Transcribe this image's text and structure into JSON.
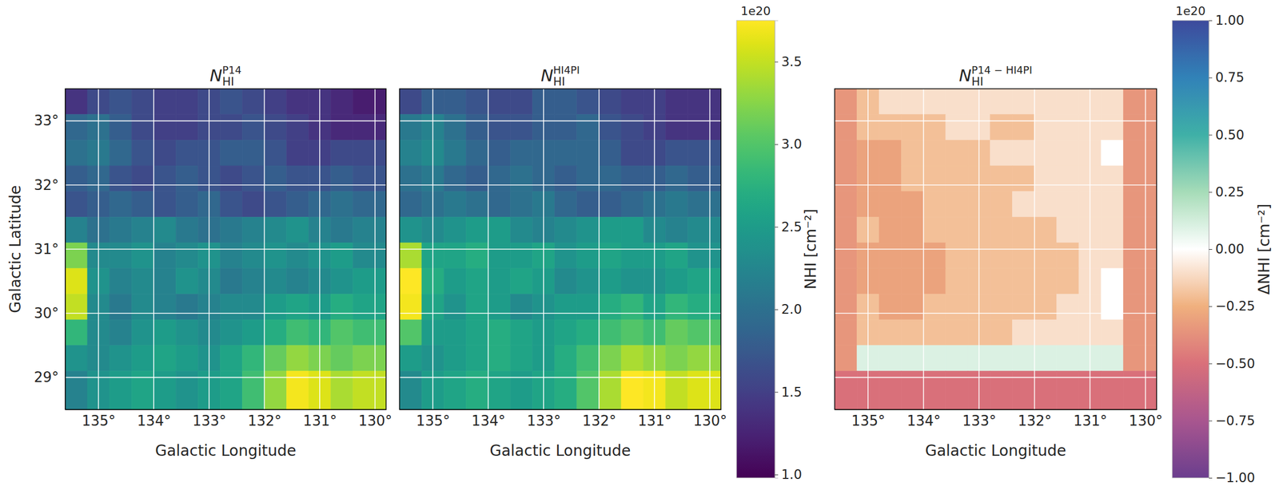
{
  "chart_data": [
    {
      "type": "heatmap",
      "title": {
        "base": "N",
        "sub": "HI",
        "sup": "P14"
      },
      "xlabel": "Galactic Longitude",
      "ylabel": "Galactic Latitude",
      "xlim": [
        135.6,
        129.8
      ],
      "ylim": [
        28.5,
        33.5
      ],
      "xticks": [
        {
          "value": 135,
          "label": "135°"
        },
        {
          "value": 134,
          "label": "134°"
        },
        {
          "value": 133,
          "label": "133°"
        },
        {
          "value": 132,
          "label": "132°"
        },
        {
          "value": 131,
          "label": "131°"
        },
        {
          "value": 130,
          "label": "130°"
        }
      ],
      "yticks": [
        {
          "value": 29,
          "label": "29°"
        },
        {
          "value": 30,
          "label": "30°"
        },
        {
          "value": 31,
          "label": "31°"
        },
        {
          "value": 32,
          "label": "32°"
        },
        {
          "value": 33,
          "label": "33°"
        }
      ],
      "grid": true,
      "x_edges": [
        135.6,
        135.2,
        134.8,
        134.4,
        134.0,
        133.6,
        133.2,
        132.8,
        132.4,
        132.0,
        131.6,
        131.2,
        130.8,
        130.4,
        129.8
      ],
      "y_edges": [
        33.5,
        33.1,
        32.7,
        32.3,
        31.9,
        31.5,
        31.1,
        30.7,
        30.3,
        29.9,
        29.5,
        29.1,
        28.5
      ],
      "cells": [
        [
          1.4,
          1.6,
          1.7,
          1.6,
          1.5,
          1.5,
          1.6,
          1.7,
          1.6,
          1.5,
          1.4,
          1.4,
          1.3,
          1.2
        ],
        [
          1.9,
          2.0,
          1.8,
          1.6,
          1.5,
          1.5,
          1.6,
          1.6,
          1.7,
          1.6,
          1.5,
          1.4,
          1.3,
          1.3
        ],
        [
          2.0,
          2.1,
          1.9,
          1.7,
          1.6,
          1.7,
          1.7,
          1.8,
          1.8,
          1.7,
          1.5,
          1.5,
          1.6,
          1.6
        ],
        [
          1.8,
          1.9,
          1.7,
          1.6,
          1.7,
          1.8,
          1.7,
          1.6,
          1.7,
          1.8,
          1.7,
          1.7,
          1.8,
          1.7
        ],
        [
          1.7,
          1.8,
          1.9,
          1.8,
          1.7,
          1.8,
          1.9,
          1.7,
          1.6,
          1.7,
          1.8,
          1.9,
          2.0,
          1.9
        ],
        [
          2.2,
          2.0,
          2.1,
          2.2,
          2.3,
          2.1,
          2.0,
          2.1,
          2.2,
          2.3,
          2.4,
          2.2,
          2.1,
          2.2
        ],
        [
          3.2,
          2.3,
          2.3,
          2.4,
          2.2,
          2.3,
          2.4,
          2.2,
          2.3,
          2.4,
          2.3,
          2.4,
          2.5,
          2.3
        ],
        [
          3.6,
          2.4,
          2.2,
          2.3,
          2.2,
          2.4,
          2.3,
          2.1,
          2.2,
          2.3,
          2.2,
          2.3,
          2.4,
          2.5
        ],
        [
          3.5,
          2.3,
          2.1,
          2.3,
          2.2,
          2.1,
          2.2,
          2.3,
          2.3,
          2.5,
          2.6,
          2.5,
          2.7,
          2.6
        ],
        [
          2.8,
          2.3,
          2.2,
          2.4,
          2.5,
          2.4,
          2.3,
          2.4,
          2.5,
          2.7,
          2.9,
          2.8,
          3.0,
          2.9
        ],
        [
          2.4,
          2.3,
          2.4,
          2.5,
          2.6,
          2.5,
          2.4,
          2.6,
          2.8,
          3.1,
          3.3,
          3.2,
          3.1,
          3.2
        ],
        [
          2.2,
          2.4,
          2.5,
          2.6,
          2.5,
          2.4,
          2.5,
          2.6,
          2.9,
          3.3,
          3.7,
          3.6,
          3.4,
          3.5
        ]
      ]
    },
    {
      "type": "heatmap",
      "title": {
        "base": "N",
        "sub": "HI",
        "sup": "HI4PI"
      },
      "xlabel": "Galactic Longitude",
      "xlim": [
        135.6,
        129.8
      ],
      "ylim": [
        28.5,
        33.5
      ],
      "xticks": [
        {
          "value": 135,
          "label": "135°"
        },
        {
          "value": 134,
          "label": "134°"
        },
        {
          "value": 133,
          "label": "133°"
        },
        {
          "value": 132,
          "label": "132°"
        },
        {
          "value": 131,
          "label": "131°"
        },
        {
          "value": 130,
          "label": "130°"
        }
      ],
      "yticks": [
        29,
        30,
        31,
        32,
        33
      ],
      "grid": true,
      "tick_labels": "x",
      "x_edges": [
        135.6,
        135.2,
        134.8,
        134.4,
        134.0,
        133.6,
        133.2,
        132.8,
        132.4,
        132.0,
        131.6,
        131.2,
        130.8,
        130.4,
        129.8
      ],
      "y_edges": [
        33.5,
        33.1,
        32.7,
        32.3,
        31.9,
        31.5,
        31.1,
        30.7,
        30.3,
        29.9,
        29.5,
        29.1,
        28.5
      ],
      "cells": [
        [
          1.6,
          1.8,
          1.8,
          1.7,
          1.6,
          1.6,
          1.8,
          1.8,
          1.7,
          1.6,
          1.5,
          1.5,
          1.4,
          1.4
        ],
        [
          2.1,
          2.2,
          2.0,
          1.8,
          1.7,
          1.7,
          1.8,
          1.8,
          1.9,
          1.7,
          1.6,
          1.5,
          1.4,
          1.4
        ],
        [
          2.2,
          2.3,
          2.1,
          1.9,
          1.8,
          1.9,
          1.9,
          1.9,
          1.9,
          1.8,
          1.6,
          1.6,
          1.7,
          1.7
        ],
        [
          2.0,
          2.1,
          1.9,
          1.8,
          1.9,
          2.0,
          1.9,
          1.8,
          1.9,
          1.9,
          1.8,
          1.8,
          1.9,
          1.8
        ],
        [
          1.9,
          2.0,
          2.1,
          2.0,
          1.9,
          2.0,
          2.1,
          1.9,
          1.8,
          1.8,
          1.9,
          2.0,
          2.1,
          2.0
        ],
        [
          2.4,
          2.3,
          2.4,
          2.5,
          2.5,
          2.3,
          2.2,
          2.3,
          2.4,
          2.5,
          2.5,
          2.3,
          2.2,
          2.3
        ],
        [
          3.4,
          2.6,
          2.6,
          2.7,
          2.5,
          2.5,
          2.6,
          2.4,
          2.5,
          2.6,
          2.5,
          2.5,
          2.6,
          2.4
        ],
        [
          3.8,
          2.7,
          2.5,
          2.6,
          2.5,
          2.6,
          2.5,
          2.3,
          2.4,
          2.5,
          2.4,
          2.4,
          2.5,
          2.6
        ],
        [
          3.7,
          2.6,
          2.4,
          2.6,
          2.5,
          2.3,
          2.4,
          2.5,
          2.5,
          2.7,
          2.8,
          2.6,
          2.8,
          2.7
        ],
        [
          3.0,
          2.5,
          2.5,
          2.6,
          2.7,
          2.6,
          2.5,
          2.6,
          2.7,
          2.9,
          3.0,
          2.9,
          3.1,
          3.0
        ],
        [
          2.5,
          2.4,
          2.5,
          2.6,
          2.7,
          2.6,
          2.5,
          2.7,
          2.9,
          3.2,
          3.4,
          3.3,
          3.2,
          3.3
        ],
        [
          2.3,
          2.5,
          2.6,
          2.7,
          2.6,
          2.5,
          2.6,
          2.7,
          3.0,
          3.4,
          3.8,
          3.7,
          3.5,
          3.6
        ]
      ],
      "colorbar": {
        "label": "NHI [cm⁻²]",
        "offset_text": "1e20",
        "range": [
          0.98,
          3.75
        ],
        "ticks": [
          {
            "value": 1,
            "label": "1.0"
          },
          1.5,
          {
            "value": 2,
            "label": "2.0"
          },
          2.5,
          {
            "value": 3,
            "label": "3.0"
          },
          3.5
        ]
      }
    },
    {
      "type": "heatmap",
      "title": {
        "base": "N",
        "sub": "HI",
        "sup": "P14 − HI4PI"
      },
      "xlabel": "Galactic Longitude",
      "xlim": [
        135.6,
        129.8
      ],
      "ylim": [
        28.5,
        33.5
      ],
      "xticks": [
        {
          "value": 135,
          "label": "135°"
        },
        {
          "value": 134,
          "label": "134°"
        },
        {
          "value": 133,
          "label": "133°"
        },
        {
          "value": 132,
          "label": "132°"
        },
        {
          "value": 131,
          "label": "131°"
        },
        {
          "value": 130,
          "label": "130°"
        }
      ],
      "yticks": [
        29,
        30,
        31,
        32,
        33
      ],
      "grid": true,
      "tick_labels": "x",
      "x_edges": [
        135.6,
        135.2,
        134.8,
        134.4,
        134.0,
        133.6,
        133.2,
        132.8,
        132.4,
        132.0,
        131.6,
        131.2,
        130.8,
        130.4,
        129.8
      ],
      "y_edges": [
        33.5,
        33.1,
        32.7,
        32.3,
        31.9,
        31.5,
        31.1,
        30.7,
        30.3,
        29.9,
        29.5,
        29.1,
        28.5
      ],
      "cells": [
        [
          -0.35,
          -0.2,
          -0.1,
          -0.1,
          -0.1,
          -0.1,
          -0.1,
          -0.1,
          -0.1,
          -0.1,
          -0.1,
          -0.1,
          -0.1,
          -0.35
        ],
        [
          -0.35,
          -0.2,
          -0.2,
          -0.2,
          -0.2,
          -0.1,
          -0.1,
          -0.2,
          -0.2,
          -0.1,
          -0.1,
          -0.1,
          -0.1,
          -0.35
        ],
        [
          -0.35,
          -0.3,
          -0.3,
          -0.2,
          -0.2,
          -0.2,
          -0.2,
          -0.1,
          -0.1,
          -0.1,
          -0.1,
          -0.1,
          0,
          -0.35
        ],
        [
          -0.35,
          -0.3,
          -0.3,
          -0.2,
          -0.2,
          -0.2,
          -0.2,
          -0.2,
          -0.2,
          -0.1,
          -0.1,
          -0.1,
          -0.1,
          -0.35
        ],
        [
          -0.35,
          -0.3,
          -0.3,
          -0.3,
          -0.2,
          -0.2,
          -0.2,
          -0.2,
          -0.1,
          -0.1,
          -0.1,
          -0.1,
          -0.1,
          -0.35
        ],
        [
          -0.35,
          -0.2,
          -0.3,
          -0.3,
          -0.2,
          -0.2,
          -0.2,
          -0.2,
          -0.2,
          -0.2,
          -0.1,
          -0.1,
          -0.1,
          -0.35
        ],
        [
          -0.35,
          -0.3,
          -0.3,
          -0.3,
          -0.3,
          -0.2,
          -0.2,
          -0.2,
          -0.2,
          -0.2,
          -0.2,
          -0.1,
          -0.1,
          -0.35
        ],
        [
          -0.35,
          -0.3,
          -0.3,
          -0.3,
          -0.3,
          -0.2,
          -0.2,
          -0.2,
          -0.2,
          -0.2,
          -0.2,
          -0.1,
          0,
          -0.35
        ],
        [
          -0.35,
          -0.2,
          -0.3,
          -0.3,
          -0.2,
          -0.2,
          -0.2,
          -0.2,
          -0.2,
          -0.2,
          -0.1,
          -0.1,
          0,
          -0.35
        ],
        [
          -0.35,
          -0.2,
          -0.2,
          -0.2,
          -0.2,
          -0.2,
          -0.2,
          -0.2,
          -0.1,
          -0.1,
          -0.1,
          -0.1,
          -0.1,
          -0.35
        ],
        [
          -0.35,
          0.1,
          0.1,
          0.1,
          0.1,
          0.1,
          0.1,
          0.1,
          0.1,
          0.1,
          0.1,
          0.1,
          0.1,
          -0.35
        ],
        [
          -0.5,
          -0.5,
          -0.5,
          -0.5,
          -0.5,
          -0.5,
          -0.5,
          -0.5,
          -0.5,
          -0.5,
          -0.5,
          -0.5,
          -0.5,
          -0.5
        ]
      ],
      "colorbar": {
        "label": "ΔNHI [cm⁻²]",
        "offset_text": "1e20",
        "range": [
          -1,
          1
        ],
        "ticks": [
          {
            "value": -1,
            "label": "−1.00"
          },
          {
            "value": -0.75,
            "label": "−0.75"
          },
          {
            "value": -0.5,
            "label": "−0.50"
          },
          {
            "value": -0.25,
            "label": "−0.25"
          },
          {
            "value": 0,
            "label": "0.00"
          },
          {
            "value": 0.25,
            "label": "0.25"
          },
          {
            "value": 0.5,
            "label": "0.50"
          },
          {
            "value": 0.75,
            "label": "0.75"
          },
          {
            "value": 1,
            "label": "1.00"
          }
        ]
      }
    }
  ]
}
